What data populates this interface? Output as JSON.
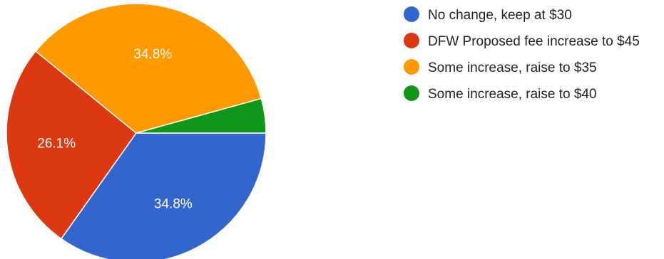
{
  "chart_data": {
    "type": "pie",
    "categories": [
      "No change, keep at $30",
      "DFW Proposed fee increase to $45",
      "Some increase, raise to $35",
      "Some increase, raise to $40"
    ],
    "values": [
      34.8,
      26.1,
      34.8,
      4.3
    ],
    "data_labels": [
      "34.8%",
      "26.1%",
      "34.8%",
      ""
    ],
    "colors": [
      "#3366CC",
      "#DC3912",
      "#FF9900",
      "#109618"
    ],
    "legend": {
      "position": "right",
      "entries": [
        "No change, keep at $30",
        "DFW Proposed fee increase to $45",
        "Some increase, raise to $35",
        "Some increase, raise to $40"
      ]
    }
  }
}
